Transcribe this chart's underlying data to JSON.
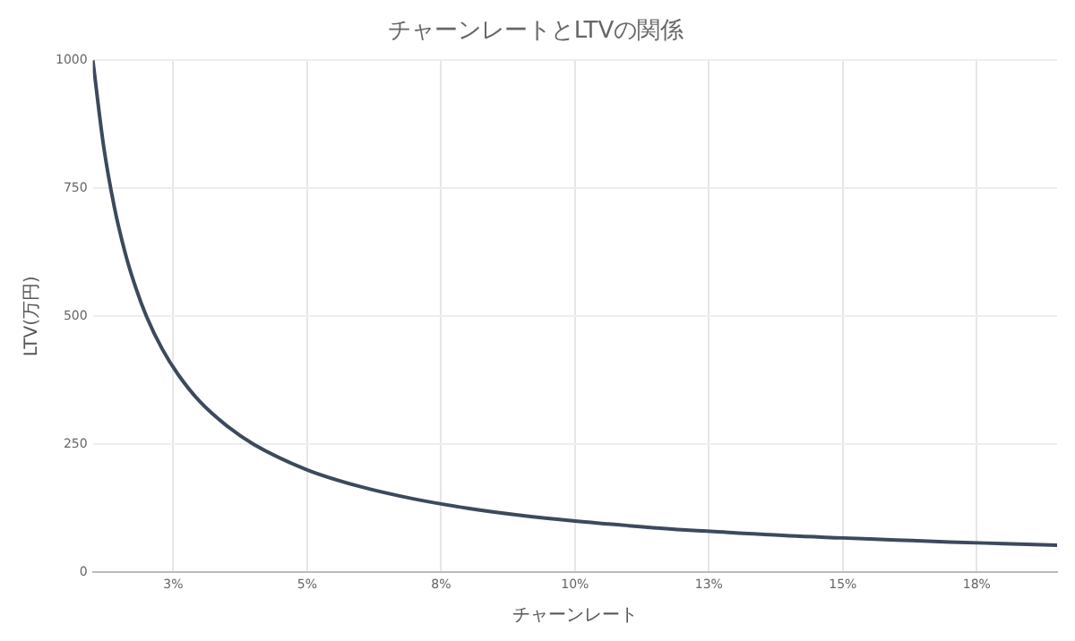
{
  "chart_data": {
    "type": "line",
    "title": "チャーンレートとLTVの関係",
    "xlabel": "チャーンレート",
    "ylabel": "LTV(万円)",
    "x": [
      1,
      1.2,
      1.4,
      1.6,
      1.8,
      2,
      2.3,
      2.6,
      3,
      3.5,
      4,
      5,
      6,
      7,
      8,
      9,
      10,
      11,
      12,
      13,
      14,
      15,
      16,
      17,
      18,
      19
    ],
    "series": [
      {
        "color": "#3b4a5c",
        "values": [
          1000,
          833,
          714,
          625,
          556,
          500,
          435,
          385,
          333,
          286,
          250,
          200,
          167,
          143,
          125,
          111,
          100,
          91,
          83,
          77,
          71,
          67,
          63,
          59,
          56,
          53
        ]
      }
    ],
    "xlim": [
      1,
      19
    ],
    "xticks": [
      {
        "value": 2.5,
        "label": "3%"
      },
      {
        "value": 5,
        "label": "5%"
      },
      {
        "value": 7.5,
        "label": "8%"
      },
      {
        "value": 10,
        "label": "10%"
      },
      {
        "value": 12.5,
        "label": "13%"
      },
      {
        "value": 15,
        "label": "15%"
      },
      {
        "value": 17.5,
        "label": "18%"
      }
    ],
    "ylim": [
      0,
      1000
    ],
    "yticks": [
      0,
      250,
      500,
      750,
      1000
    ],
    "grid": true,
    "legend": false,
    "marker": "none",
    "line_style": "solid"
  }
}
